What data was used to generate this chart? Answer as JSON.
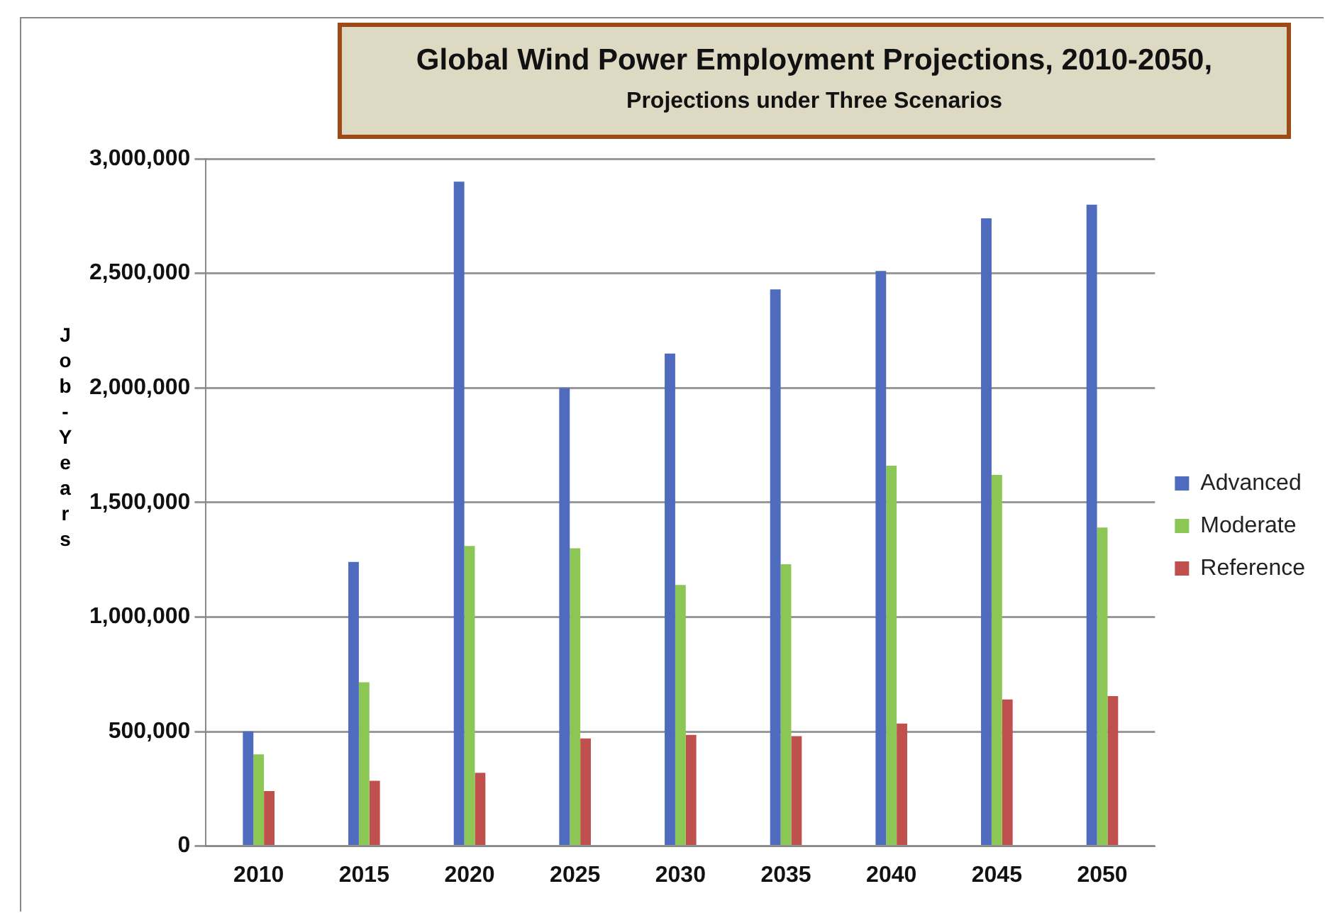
{
  "chart_data": {
    "type": "bar",
    "title": "Global Wind Power Employment Projections, 2010-2050,",
    "subtitle": "Projections under Three Scenarios",
    "ylabel": "Job-Years",
    "categories": [
      "2010",
      "2015",
      "2020",
      "2025",
      "2030",
      "2035",
      "2040",
      "2045",
      "2050"
    ],
    "series": [
      {
        "name": "Advanced",
        "color": "#4f6bbd",
        "values": [
          500000,
          1240000,
          2900000,
          2000000,
          2150000,
          2430000,
          2510000,
          2740000,
          2800000
        ]
      },
      {
        "name": "Moderate",
        "color": "#8cc654",
        "values": [
          400000,
          715000,
          1310000,
          1300000,
          1140000,
          1230000,
          1660000,
          1620000,
          1390000
        ]
      },
      {
        "name": "Reference",
        "color": "#c0504d",
        "values": [
          240000,
          285000,
          320000,
          470000,
          485000,
          480000,
          535000,
          640000,
          655000
        ]
      }
    ],
    "ylim": [
      0,
      3000000
    ],
    "yticks": [
      0,
      {
        "value": 500000,
        "label": "500,000"
      },
      {
        "value": 1000000,
        "label": "1,000,000"
      },
      {
        "value": 1500000,
        "label": "1,500,000"
      },
      {
        "value": 2000000,
        "label": "2,000,000"
      },
      {
        "value": 2500000,
        "label": "2,500,000"
      },
      {
        "value": 3000000,
        "label": "3,000,000"
      }
    ],
    "grid": "y",
    "legend": "right"
  }
}
